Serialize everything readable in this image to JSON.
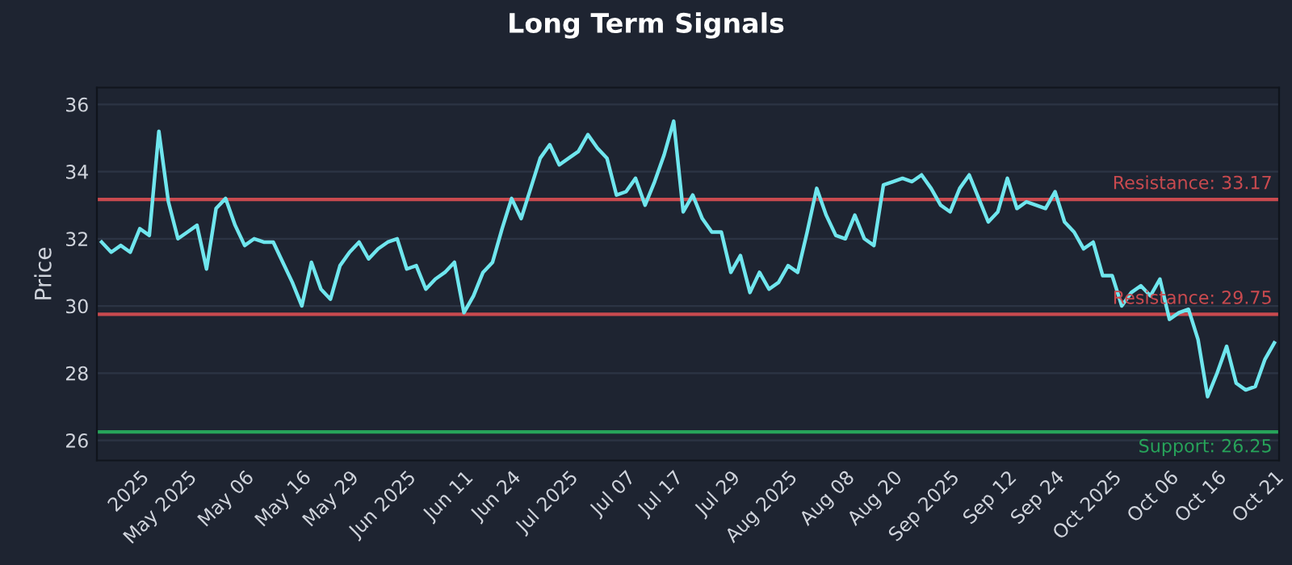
{
  "chart_data": {
    "type": "line",
    "title": "Long Term Signals",
    "ylabel": "Price",
    "categories": [
      null,
      null,
      null,
      null,
      "2025",
      null,
      null,
      null,
      null,
      "May 2025",
      null,
      null,
      null,
      null,
      null,
      "May 06",
      null,
      null,
      null,
      null,
      null,
      "May 16",
      null,
      null,
      null,
      null,
      "May 29",
      null,
      null,
      null,
      null,
      null,
      "Jun 2025",
      null,
      null,
      null,
      null,
      null,
      "Jun 11",
      null,
      null,
      null,
      null,
      "Jun 24",
      null,
      null,
      null,
      null,
      null,
      "Jul 2025",
      null,
      null,
      null,
      null,
      null,
      "Jul 07",
      null,
      null,
      null,
      null,
      "Jul 17",
      null,
      null,
      null,
      null,
      null,
      "Jul 29",
      null,
      null,
      null,
      null,
      null,
      "Aug 2025",
      null,
      null,
      null,
      null,
      null,
      "Aug 08",
      null,
      null,
      null,
      null,
      "Aug 20",
      null,
      null,
      null,
      null,
      null,
      "Sep 2025",
      null,
      null,
      null,
      null,
      null,
      "Sep 12",
      null,
      null,
      null,
      null,
      "Sep 24",
      null,
      null,
      null,
      null,
      null,
      "Oct 2025",
      null,
      null,
      null,
      null,
      null,
      "Oct 06",
      null,
      null,
      null,
      null,
      "Oct 16",
      null,
      null,
      null,
      null,
      null,
      "Oct 21"
    ],
    "series": [
      {
        "color": "#6fe6ee",
        "values": [
          31.9,
          31.6,
          31.8,
          31.6,
          32.3,
          32.1,
          35.2,
          33.1,
          32.0,
          32.2,
          32.4,
          31.1,
          32.9,
          33.2,
          32.4,
          31.8,
          32.0,
          31.9,
          31.9,
          31.3,
          30.7,
          30.0,
          31.3,
          30.5,
          30.2,
          31.2,
          31.6,
          31.9,
          31.4,
          31.7,
          31.9,
          32.0,
          31.1,
          31.2,
          30.5,
          30.8,
          31.0,
          31.3,
          29.8,
          30.3,
          31.0,
          31.3,
          32.3,
          33.2,
          32.6,
          33.5,
          34.4,
          34.8,
          34.2,
          34.4,
          34.6,
          35.1,
          34.7,
          34.4,
          33.3,
          33.4,
          33.8,
          33.0,
          33.7,
          34.5,
          35.5,
          32.8,
          33.3,
          32.6,
          32.2,
          32.2,
          31.0,
          31.5,
          30.4,
          31.0,
          30.5,
          30.7,
          31.2,
          31.0,
          32.2,
          33.5,
          32.7,
          32.1,
          32.0,
          32.7,
          32.0,
          31.8,
          33.6,
          33.7,
          33.8,
          33.7,
          33.9,
          33.5,
          33.0,
          32.8,
          33.5,
          33.9,
          33.2,
          32.5,
          32.8,
          33.8,
          32.9,
          33.1,
          33.0,
          32.9,
          33.4,
          32.5,
          32.2,
          31.7,
          31.9,
          30.9,
          30.9,
          30.0,
          30.4,
          30.6,
          30.3,
          30.8,
          29.6,
          29.8,
          29.9,
          29.0,
          27.3,
          28.0,
          28.8,
          27.7,
          27.5,
          27.6,
          28.4,
          28.9
        ]
      }
    ],
    "ylim": [
      25.4,
      36.5
    ],
    "yticks": [
      26,
      28,
      30,
      32,
      34,
      36
    ],
    "grid": "y",
    "line_style": "solid",
    "marker": "none",
    "ref_lines": [
      {
        "axis": "y",
        "value": 33.17,
        "label": "Resistance: 33.17",
        "color": "#c94a4f"
      },
      {
        "axis": "y",
        "value": 29.75,
        "label": "Resistance: 29.75",
        "color": "#c94a4f"
      },
      {
        "axis": "y",
        "value": 26.25,
        "label": "Support: 26.25",
        "color": "#27a35a"
      }
    ]
  }
}
